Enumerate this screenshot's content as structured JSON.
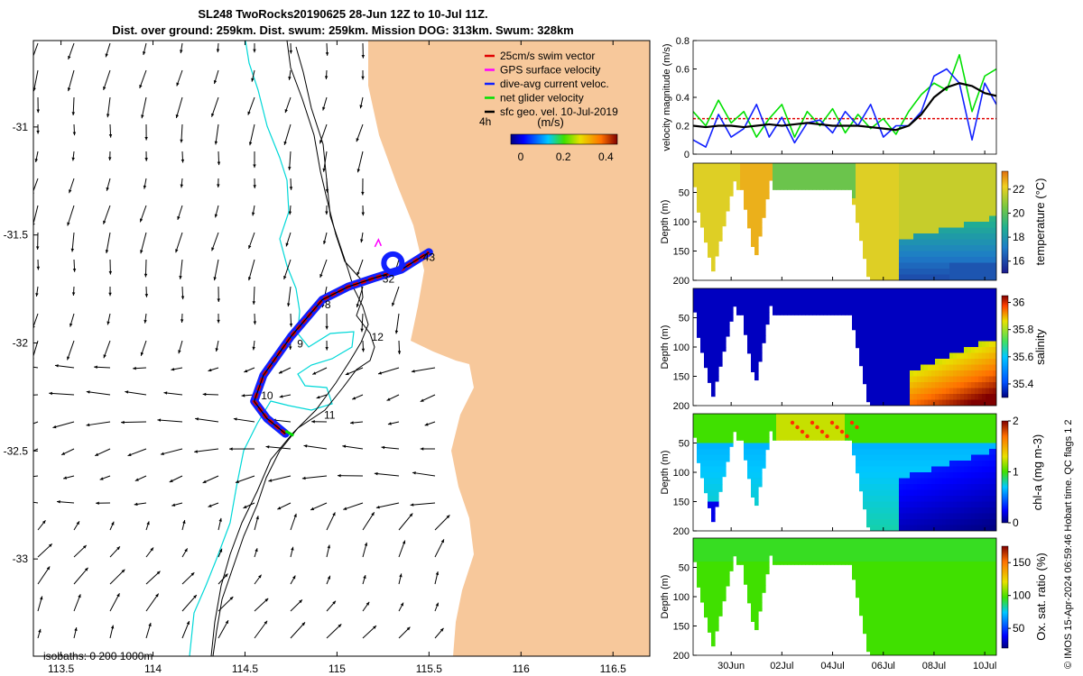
{
  "header": {
    "title": "SL248 TwoRocks20190625 28-Jun 12Z to 10-Jul 11Z.",
    "subtitle": "Dist. over ground: 259km. Dist. swum: 259km. Mission DOG: 313km. Swum: 328km"
  },
  "side_note": "© IMOS 15-Apr-2024 06:59:46 Hobart time. QC flags 1  2",
  "colors": {
    "land": "#f7c89b",
    "isobath_0": "#00d8d8",
    "isobath_200": "#000000",
    "track_swim": "#e00000",
    "track_gps": "#ff00ff",
    "track_current": "#1020ff",
    "track_net": "#00e000",
    "sfc_vel": "#000000"
  },
  "chart_data": [
    {
      "type": "map",
      "legend": [
        {
          "label": "25cm/s swim vector",
          "color": "#e00000"
        },
        {
          "label": "GPS surface velocity",
          "color": "#ff00ff"
        },
        {
          "label": "dive-avg current veloc.",
          "color": "#1020ff"
        },
        {
          "label": "net glider velocity",
          "color": "#00e000"
        },
        {
          "label": "sfc geo. vel. 10-Jul-2019",
          "color": "#000000"
        }
      ],
      "legend_note": "4h",
      "colorbar": {
        "label": "(m/s)",
        "ticks": [
          "0",
          "0.2",
          "0.4"
        ],
        "range": [
          0,
          0.5
        ]
      },
      "isobath_note": "isobaths: 0   200  1000m",
      "xticks": [
        "113.5",
        "114",
        "114.5",
        "115",
        "115.5",
        "116",
        "116.5"
      ],
      "xtick_values": [
        113.5,
        114,
        114.5,
        115,
        115.5,
        116,
        116.5
      ],
      "yticks": [
        "-31",
        "-31.5",
        "-32",
        "-32.5",
        "-33"
      ],
      "ytick_values": [
        -31,
        -31.5,
        -32,
        -32.5,
        -33
      ],
      "xlim": [
        113.35,
        116.7
      ],
      "ylim": [
        -33.45,
        -30.6
      ],
      "day_labels": [
        {
          "text": "32",
          "lon": 115.28,
          "lat": -31.72
        },
        {
          "text": "43",
          "lon": 115.5,
          "lat": -31.62
        },
        {
          "text": "8",
          "lon": 114.95,
          "lat": -31.84
        },
        {
          "text": "12",
          "lon": 115.22,
          "lat": -31.99
        },
        {
          "text": "9",
          "lon": 114.8,
          "lat": -32.02
        },
        {
          "text": "10",
          "lon": 114.62,
          "lat": -32.26
        },
        {
          "text": "11",
          "lon": 114.96,
          "lat": -32.35
        }
      ],
      "track": [
        [
          114.72,
          -32.42
        ],
        [
          114.62,
          -32.35
        ],
        [
          114.55,
          -32.27
        ],
        [
          114.6,
          -32.15
        ],
        [
          114.75,
          -31.97
        ],
        [
          114.92,
          -31.8
        ],
        [
          115.06,
          -31.74
        ],
        [
          115.2,
          -31.7
        ],
        [
          115.35,
          -31.66
        ],
        [
          115.5,
          -31.58
        ]
      ]
    },
    {
      "type": "line",
      "ylabel": "velocity magnitude (m/s)",
      "ylim": [
        0,
        0.8
      ],
      "yticks": [
        "0",
        "0.2",
        "0.4",
        "0.6",
        "0.8"
      ],
      "ytick_values": [
        0,
        0.2,
        0.4,
        0.6,
        0.8
      ],
      "x_start": "2019-06-28T12:00",
      "x_end": "2019-07-10T11:00",
      "times": [
        "2019-06-28T12:00",
        "2019-06-29T00:00",
        "2019-06-29T12:00",
        "2019-06-30T00:00",
        "2019-06-30T12:00",
        "2019-07-01T00:00",
        "2019-07-01T12:00",
        "2019-07-02T00:00",
        "2019-07-02T12:00",
        "2019-07-03T00:00",
        "2019-07-03T12:00",
        "2019-07-04T00:00",
        "2019-07-04T12:00",
        "2019-07-05T00:00",
        "2019-07-05T12:00",
        "2019-07-06T00:00",
        "2019-07-06T12:00",
        "2019-07-07T00:00",
        "2019-07-07T12:00",
        "2019-07-08T00:00",
        "2019-07-08T12:00",
        "2019-07-09T00:00",
        "2019-07-09T12:00",
        "2019-07-10T00:00",
        "2019-07-10T11:00"
      ],
      "series": [
        {
          "color": "#e00000",
          "dashed": true,
          "values": [
            0.25,
            0.25,
            0.25,
            0.25,
            0.25,
            0.25,
            0.25,
            0.25,
            0.25,
            0.25,
            0.25,
            0.25,
            0.25,
            0.25,
            0.25,
            0.25,
            0.25,
            0.25,
            0.25,
            0.25,
            0.25,
            0.25,
            0.25,
            0.25,
            0.25
          ]
        },
        {
          "color": "#00e000",
          "values": [
            0.3,
            0.2,
            0.38,
            0.22,
            0.3,
            0.12,
            0.25,
            0.35,
            0.12,
            0.3,
            0.2,
            0.32,
            0.15,
            0.28,
            0.18,
            0.25,
            0.14,
            0.3,
            0.42,
            0.5,
            0.45,
            0.7,
            0.3,
            0.55,
            0.6
          ]
        },
        {
          "color": "#1020ff",
          "values": [
            0.1,
            0.05,
            0.28,
            0.12,
            0.18,
            0.35,
            0.12,
            0.26,
            0.08,
            0.22,
            0.24,
            0.15,
            0.3,
            0.2,
            0.35,
            0.12,
            0.2,
            0.2,
            0.3,
            0.55,
            0.6,
            0.5,
            0.1,
            0.5,
            0.35
          ]
        },
        {
          "color": "#000000",
          "values": [
            0.2,
            0.19,
            0.2,
            0.2,
            0.19,
            0.2,
            0.21,
            0.2,
            0.21,
            0.22,
            0.21,
            0.2,
            0.2,
            0.2,
            0.19,
            0.18,
            0.17,
            0.2,
            0.28,
            0.4,
            0.47,
            0.5,
            0.48,
            0.43,
            0.41
          ]
        }
      ]
    },
    {
      "type": "heatmap",
      "variable": "temperature",
      "ylabel": "Depth (m)",
      "cbar_label": "temperature (°C)",
      "cbar_ticks": [
        "16",
        "18",
        "20",
        "22"
      ],
      "cbar_values": [
        16,
        18,
        20,
        22
      ],
      "cbar_range": [
        15,
        23.5
      ],
      "depth_ticks": [
        "50",
        "100",
        "150",
        "200"
      ],
      "depth_values": [
        50,
        100,
        150,
        200
      ]
    },
    {
      "type": "heatmap",
      "variable": "salinity",
      "ylabel": "Depth (m)",
      "cbar_label": "salinity",
      "cbar_ticks": [
        "35.4",
        "35.6",
        "35.8",
        "36"
      ],
      "cbar_values": [
        35.4,
        35.6,
        35.8,
        36
      ],
      "cbar_range": [
        35.3,
        36.05
      ],
      "depth_ticks": [
        "50",
        "100",
        "150",
        "200"
      ],
      "depth_values": [
        50,
        100,
        150,
        200
      ]
    },
    {
      "type": "heatmap",
      "variable": "chl-a",
      "ylabel": "Depth (m)",
      "cbar_label": "chl-a (mg m-3)",
      "cbar_ticks": [
        "0",
        "1",
        "2"
      ],
      "cbar_values": [
        0,
        1,
        2
      ],
      "cbar_range": [
        0,
        2
      ],
      "depth_ticks": [
        "50",
        "100",
        "150",
        "200"
      ],
      "depth_values": [
        50,
        100,
        150,
        200
      ]
    },
    {
      "type": "heatmap",
      "variable": "oxygen",
      "ylabel": "Depth (m)",
      "cbar_label": "Ox. sat. ratio (%)",
      "cbar_ticks": [
        "50",
        "100",
        "150"
      ],
      "cbar_values": [
        50,
        100,
        150
      ],
      "cbar_range": [
        20,
        175
      ],
      "depth_ticks": [
        "50",
        "100",
        "150",
        "200"
      ],
      "depth_values": [
        50,
        100,
        150,
        200
      ],
      "xticks": [
        "30Jun",
        "02Jul",
        "04Jul",
        "06Jul",
        "08Jul",
        "10Jul"
      ],
      "xtick_times": [
        "2019-06-30",
        "2019-07-02",
        "2019-07-04",
        "2019-07-06",
        "2019-07-08",
        "2019-07-10"
      ]
    }
  ]
}
